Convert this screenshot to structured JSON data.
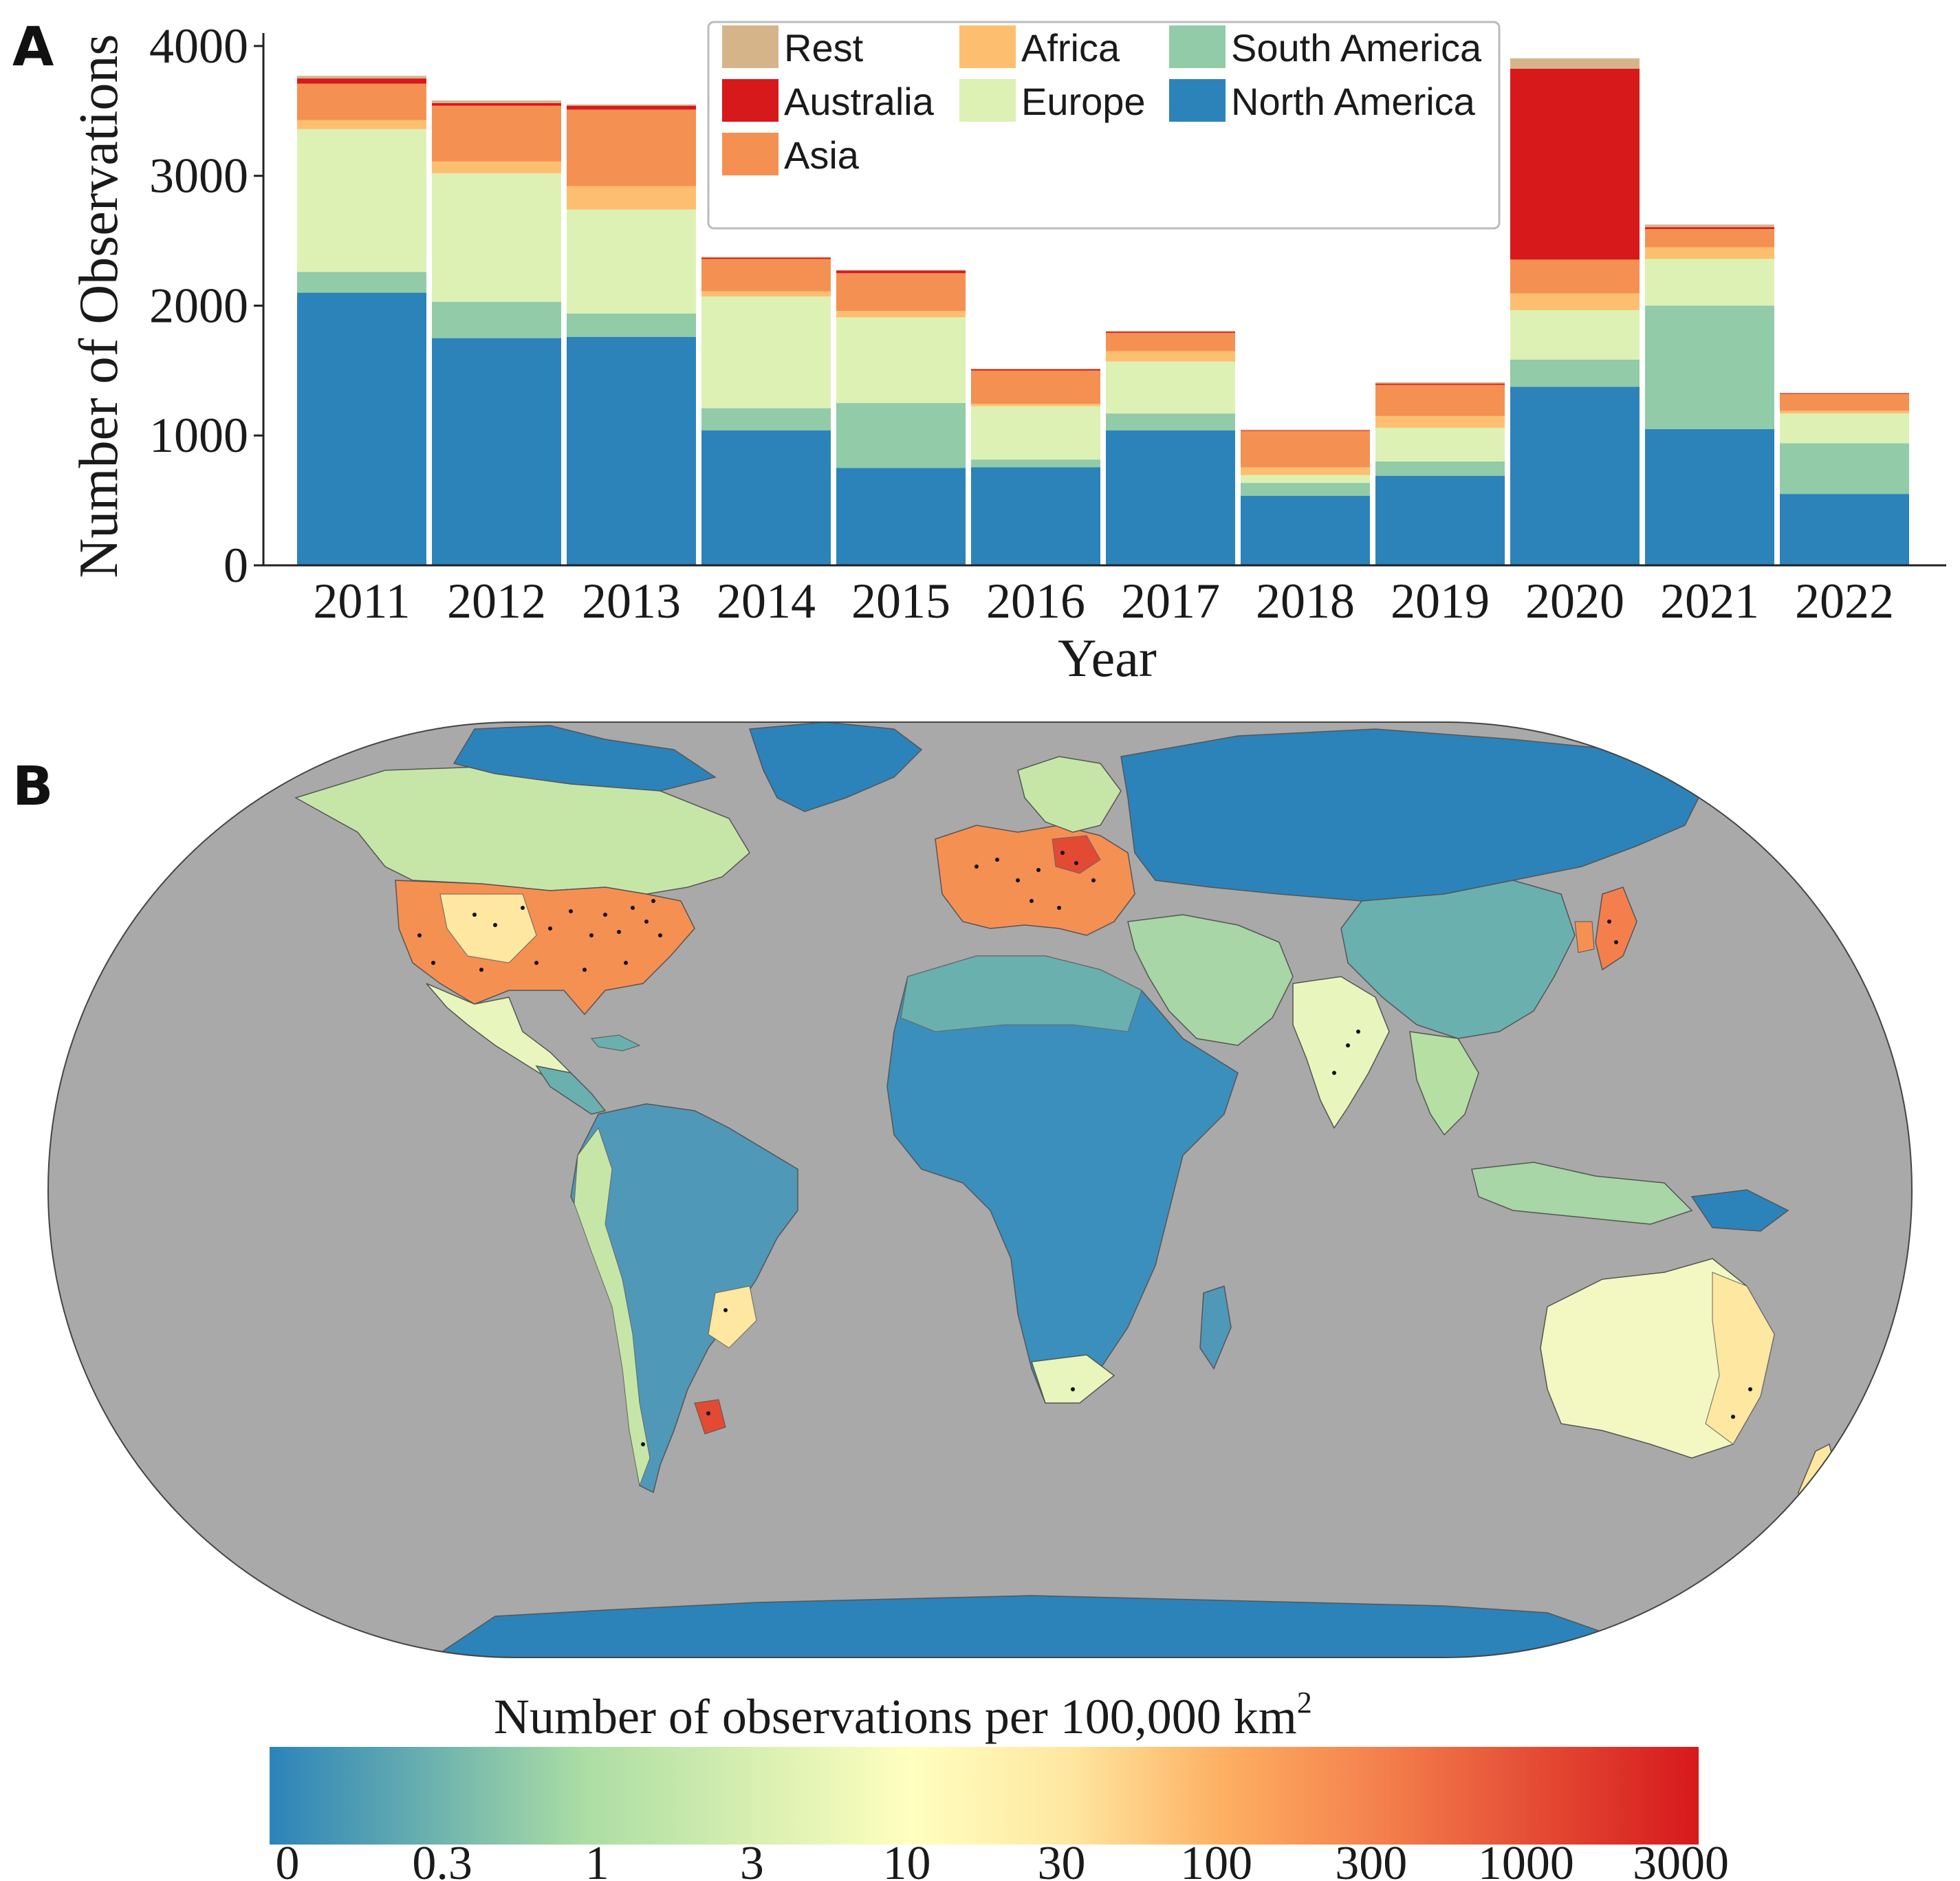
{
  "panel_a": {
    "letter": "A"
  },
  "panel_b": {
    "letter": "B"
  },
  "chart_data": [
    {
      "type": "bar",
      "stacked": true,
      "xlabel": "Year",
      "ylabel": "Number of Observations",
      "categories": [
        "2011",
        "2012",
        "2013",
        "2014",
        "2015",
        "2016",
        "2017",
        "2018",
        "2019",
        "2020",
        "2021",
        "2022"
      ],
      "ylim": [
        0,
        4100
      ],
      "yticks": [
        0,
        1000,
        2000,
        3000,
        4000
      ],
      "grid": false,
      "legend": "top-center",
      "series": [
        {
          "name": "North America",
          "color": "#2b83ba",
          "values": [
            2100,
            1750,
            1760,
            1040,
            750,
            755,
            1040,
            535,
            690,
            1375,
            1050,
            550
          ]
        },
        {
          "name": "South America",
          "color": "#91cba8",
          "values": [
            160,
            280,
            180,
            170,
            500,
            60,
            130,
            100,
            110,
            210,
            950,
            390
          ]
        },
        {
          "name": "Europe",
          "color": "#ddf1b4",
          "values": [
            1100,
            990,
            800,
            860,
            660,
            410,
            400,
            60,
            260,
            380,
            360,
            230
          ]
        },
        {
          "name": "Africa",
          "color": "#fdbf6f",
          "values": [
            70,
            90,
            180,
            40,
            50,
            20,
            80,
            60,
            90,
            130,
            90,
            20
          ]
        },
        {
          "name": "Asia",
          "color": "#f59053",
          "values": [
            280,
            430,
            590,
            250,
            290,
            255,
            140,
            280,
            240,
            260,
            140,
            130
          ]
        },
        {
          "name": "Australia",
          "color": "#d7191c",
          "values": [
            40,
            20,
            30,
            10,
            20,
            10,
            10,
            5,
            10,
            1470,
            15,
            5
          ]
        },
        {
          "name": "Rest",
          "color": "#d6b48a",
          "values": [
            20,
            20,
            10,
            5,
            5,
            5,
            5,
            5,
            10,
            80,
            20,
            5
          ]
        }
      ]
    },
    {
      "type": "heatmap",
      "description_kind": "choropleth world map",
      "colorbar_label": "Number of observations per 100,000 km",
      "colorbar_superscript": "2",
      "colorbar_ticks": [
        "0",
        "0.3",
        "1",
        "3",
        "10",
        "30",
        "100",
        "300",
        "1000",
        "3000"
      ],
      "colorbar_colors": [
        "#2b83ba",
        "#6ab0af",
        "#abdda4",
        "#d4eeb0",
        "#ffffbf",
        "#fee7a0",
        "#fdae61",
        "#f47f4c",
        "#e34a33",
        "#d7191c"
      ],
      "scale": "log",
      "ocean_color": "#a9a9a9",
      "regions": [
        {
          "name": "North America",
          "level": "100-1000"
        },
        {
          "name": "Canada",
          "level": "1-10"
        },
        {
          "name": "Greenland",
          "level": "0"
        },
        {
          "name": "Central America",
          "level": "3-10"
        },
        {
          "name": "South America",
          "level": "0.3-3"
        },
        {
          "name": "Southern Brazil / Uruguay",
          "level": "30-1000"
        },
        {
          "name": "Europe",
          "level": "30-1000"
        },
        {
          "name": "Scandinavia",
          "level": "1-10"
        },
        {
          "name": "Russia",
          "level": "0-0.3"
        },
        {
          "name": "Africa",
          "level": "0-1"
        },
        {
          "name": "South Africa",
          "level": "3-10"
        },
        {
          "name": "Middle East",
          "level": "1-3"
        },
        {
          "name": "India",
          "level": "3-30"
        },
        {
          "name": "China",
          "level": "0.3-3"
        },
        {
          "name": "Japan",
          "level": "100-1000"
        },
        {
          "name": "Southeast Asia",
          "level": "1-10"
        },
        {
          "name": "Australia",
          "level": "3-100"
        },
        {
          "name": "New Zealand",
          "level": "10-30"
        },
        {
          "name": "Antarctica",
          "level": "0"
        }
      ]
    }
  ]
}
